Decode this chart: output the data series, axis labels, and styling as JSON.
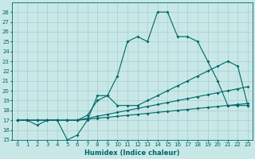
{
  "title": "",
  "xlabel": "Humidex (Indice chaleur)",
  "ylabel": "",
  "background_color": "#c8e8e8",
  "grid_color": "#aacccc",
  "line_color": "#006666",
  "xlim": [
    -0.5,
    23.5
  ],
  "ylim": [
    15,
    29
  ],
  "yticks": [
    15,
    16,
    17,
    18,
    19,
    20,
    21,
    22,
    23,
    24,
    25,
    26,
    27,
    28
  ],
  "xticks": [
    0,
    1,
    2,
    3,
    4,
    5,
    6,
    7,
    8,
    9,
    10,
    11,
    12,
    13,
    14,
    15,
    16,
    17,
    18,
    19,
    20,
    21,
    22,
    23
  ],
  "line1_x": [
    0,
    1,
    2,
    3,
    4,
    5,
    6,
    7,
    8,
    9,
    10,
    11,
    12,
    13,
    14,
    15,
    16,
    17,
    18,
    19,
    20,
    21,
    22,
    23
  ],
  "line1_y": [
    17,
    17,
    16.5,
    17,
    17,
    15,
    15.5,
    17,
    19.5,
    19.5,
    21.5,
    25,
    25.5,
    25,
    28,
    28,
    25.5,
    25.5,
    25,
    23,
    21,
    18.5,
    18.5,
    18.5
  ],
  "line2_x": [
    0,
    2,
    3,
    4,
    5,
    6,
    7,
    8,
    9,
    10,
    11,
    12,
    13,
    14,
    15,
    16,
    17,
    18,
    19,
    20,
    21,
    22,
    23
  ],
  "line2_y": [
    17,
    17,
    17,
    17,
    17,
    17,
    17.5,
    19,
    19.5,
    18.5,
    18.5,
    18.5,
    19,
    19.5,
    20,
    20.5,
    21,
    21.5,
    22,
    22.5,
    23,
    22.5,
    18.5
  ],
  "line3_x": [
    0,
    1,
    2,
    3,
    4,
    5,
    6,
    7,
    8,
    9,
    10,
    11,
    12,
    13,
    14,
    15,
    16,
    17,
    18,
    19,
    20,
    21,
    22,
    23
  ],
  "line3_y": [
    17,
    17,
    17,
    17,
    17,
    17,
    17,
    17.2,
    17.4,
    17.6,
    17.8,
    18.0,
    18.2,
    18.4,
    18.6,
    18.8,
    19.0,
    19.2,
    19.4,
    19.6,
    19.8,
    20.0,
    20.2,
    20.4
  ],
  "line4_x": [
    0,
    1,
    2,
    3,
    4,
    5,
    6,
    7,
    8,
    9,
    10,
    11,
    12,
    13,
    14,
    15,
    16,
    17,
    18,
    19,
    20,
    21,
    22,
    23
  ],
  "line4_y": [
    17,
    17,
    17,
    17,
    17,
    17,
    17,
    17.1,
    17.2,
    17.3,
    17.4,
    17.5,
    17.6,
    17.7,
    17.8,
    17.9,
    18.0,
    18.1,
    18.2,
    18.3,
    18.4,
    18.5,
    18.6,
    18.7
  ]
}
